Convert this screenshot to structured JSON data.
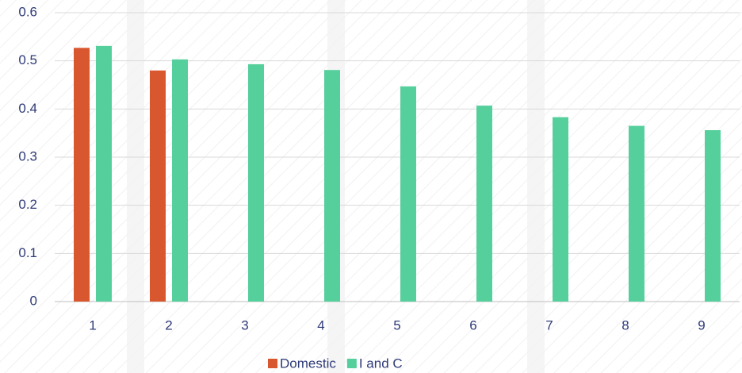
{
  "chart_data": {
    "type": "bar",
    "categories": [
      "1",
      "2",
      "3",
      "4",
      "5",
      "6",
      "7",
      "8",
      "9"
    ],
    "series": [
      {
        "name": "Domestic",
        "color": "#d9572f",
        "values": [
          0.527,
          0.48,
          null,
          null,
          null,
          null,
          null,
          null,
          null
        ]
      },
      {
        "name": "I and C",
        "color": "#55d09c",
        "values": [
          0.531,
          0.503,
          0.493,
          0.481,
          0.447,
          0.407,
          0.383,
          0.365,
          0.356
        ]
      }
    ],
    "ylim": [
      0,
      0.6
    ],
    "yticks": [
      0,
      0.1,
      0.2,
      0.3,
      0.4,
      0.5,
      0.6
    ],
    "grid": true,
    "legend": "bottom"
  }
}
